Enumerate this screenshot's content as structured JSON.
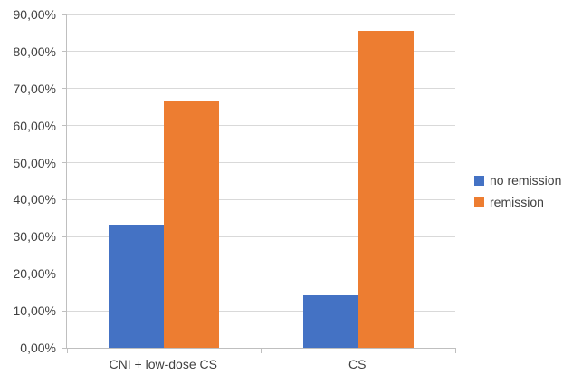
{
  "chart_data": {
    "type": "bar",
    "categories": [
      "CNI + low-dose CS",
      "CS"
    ],
    "series": [
      {
        "name": "no remission",
        "color": "#4472C4",
        "values": [
          33.33,
          14.29
        ]
      },
      {
        "name": "remission",
        "color": "#ED7D31",
        "values": [
          66.67,
          85.71
        ]
      }
    ],
    "title": "",
    "xlabel": "",
    "ylabel": "",
    "ylim": [
      0,
      90
    ],
    "ytick_step": 10,
    "ytick_labels": [
      "0,00%",
      "10,00%",
      "20,00%",
      "30,00%",
      "40,00%",
      "50,00%",
      "60,00%",
      "70,00%",
      "80,00%",
      "90,00%"
    ],
    "grid": "horizontal",
    "legend_position": "right"
  },
  "legend": {
    "items": [
      {
        "label": "no remission",
        "color": "#4472C4"
      },
      {
        "label": "remission",
        "color": "#ED7D31"
      }
    ]
  },
  "style": {
    "gridline_color": "#d9d9d9",
    "axis_color": "#bfbfbf",
    "text_color": "#404040"
  }
}
